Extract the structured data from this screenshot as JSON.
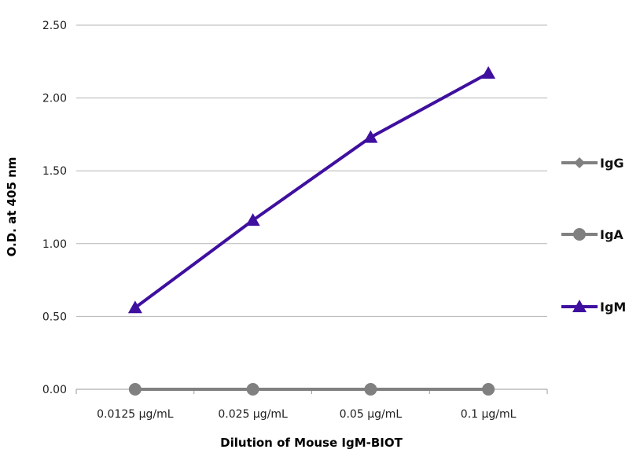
{
  "chart_data": {
    "type": "line",
    "title": "",
    "xlabel": "Dilution of Mouse IgM-BIOT",
    "ylabel": "O.D. at 405 nm",
    "categories": [
      "0.0125 µg/mL",
      "0.025 µg/mL",
      "0.05 µg/mL",
      "0.1 µg/mL"
    ],
    "ylim": [
      0,
      2.5
    ],
    "yticks": [
      0,
      0.5,
      1.0,
      1.5,
      2.0,
      2.5
    ],
    "ytick_labels": [
      "0.00",
      "0.50",
      "1.00",
      "1.50",
      "2.00",
      "2.50"
    ],
    "grid": true,
    "legend_position": "right",
    "series": [
      {
        "name": "IgG",
        "values": [
          0.0,
          0.0,
          0.0,
          0.0
        ],
        "color": "#808080",
        "marker": "diamond"
      },
      {
        "name": "IgA",
        "values": [
          0.0,
          0.0,
          0.0,
          0.0
        ],
        "color": "#808080",
        "marker": "circle"
      },
      {
        "name": "IgM",
        "values": [
          0.56,
          1.16,
          1.73,
          2.17
        ],
        "color": "#3f0f9f",
        "marker": "triangle"
      }
    ]
  }
}
